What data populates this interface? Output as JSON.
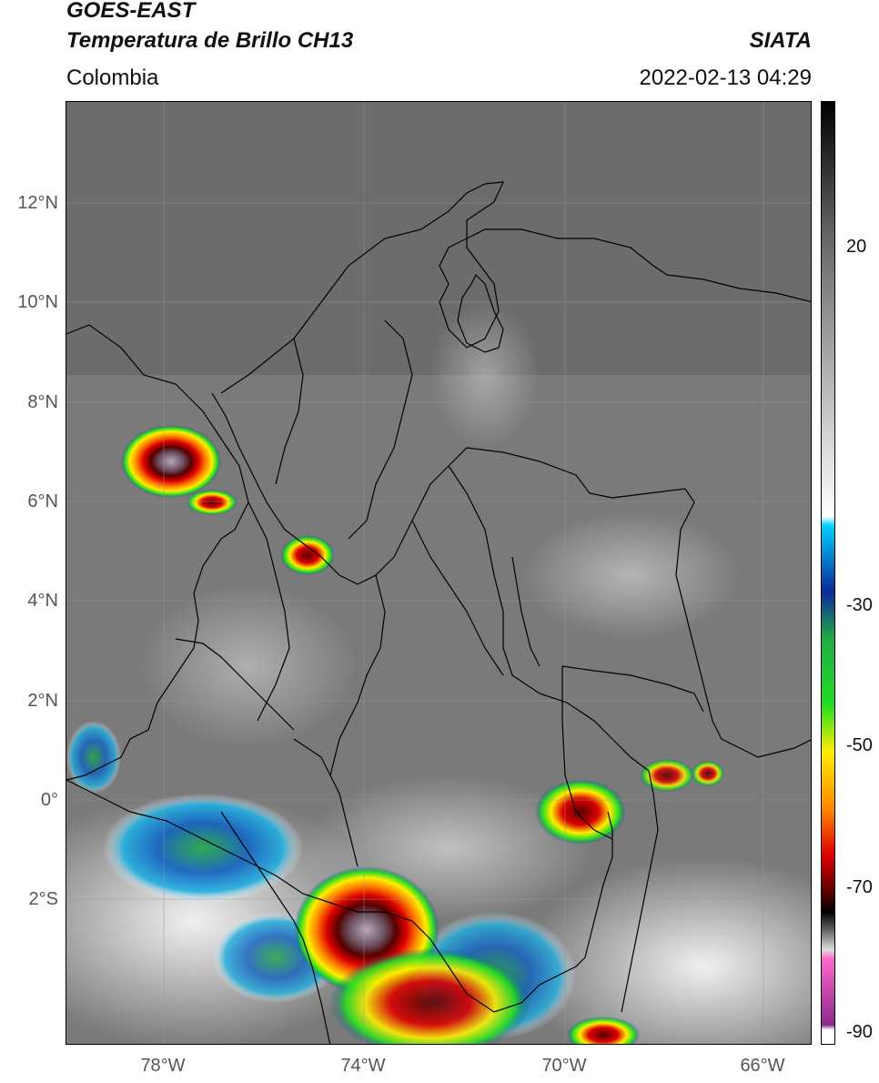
{
  "header": {
    "satellite": "GOES-EAST",
    "product": "Temperatura de Brillo CH13",
    "agency": "SIATA",
    "region": "Colombia",
    "timestamp": "2022-02-13 04:29"
  },
  "map": {
    "lat_ticks": [
      "12°N",
      "10°N",
      "8°N",
      "6°N",
      "4°N",
      "2°N",
      "0°",
      "2°S"
    ],
    "lon_ticks": [
      "78°W",
      "74°W",
      "70°W",
      "66°W"
    ]
  },
  "colorbar": {
    "labels": [
      "20",
      "-30",
      "-50",
      "-70",
      "-90"
    ],
    "colors": {
      "warm_top": "#000000",
      "gray_mid": "#9a9a9a",
      "white": "#ffffff",
      "cyan": "#00d0ff",
      "blue": "#0a2a9a",
      "green": "#22dd22",
      "yellow": "#ffee00",
      "orange": "#ff8800",
      "red": "#dd0000",
      "darkred": "#550000",
      "pink": "#ff66cc",
      "purple": "#8a2a8a"
    }
  }
}
